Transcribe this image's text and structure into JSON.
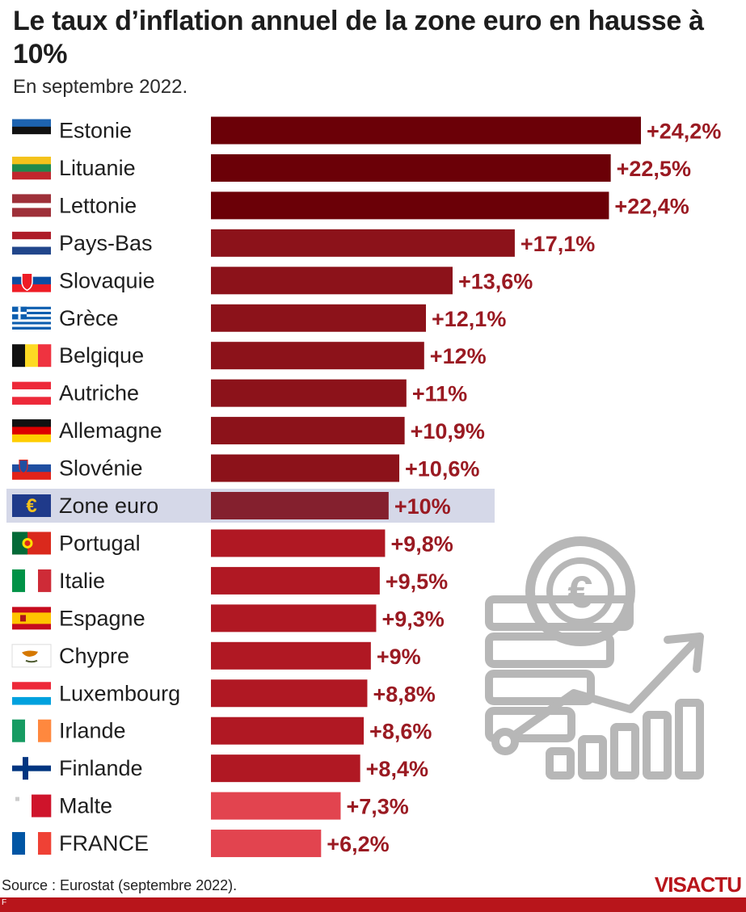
{
  "header": {
    "title": "Le taux d’inflation annuel de la zone euro en hausse à 10%",
    "subtitle": "En septembre 2022."
  },
  "footer": {
    "source": "Source : Eurostat (septembre 2022).",
    "brand": "VISACTU",
    "letter": "F"
  },
  "colors": {
    "dark": "#6b0007",
    "mid": "#8c121a",
    "light": "#b01823",
    "lightest": "#e2444f",
    "highlight_bg": "#d5d8e8",
    "highlight_bar": "#84202e",
    "label": "#9a1a22",
    "icon_gray": "#b7b7b7"
  },
  "chart_data": {
    "type": "bar",
    "orientation": "horizontal",
    "categories": [
      "Estonie",
      "Lituanie",
      "Lettonie",
      "Pays-Bas",
      "Slovaquie",
      "Grèce",
      "Belgique",
      "Autriche",
      "Allemagne",
      "Slovénie",
      "Zone euro",
      "Portugal",
      "Italie",
      "Espagne",
      "Chypre",
      "Luxembourg",
      "Irlande",
      "Finlande",
      "Malte",
      "FRANCE"
    ],
    "values": [
      24.2,
      22.5,
      22.4,
      17.1,
      13.6,
      12.1,
      12,
      11,
      10.9,
      10.6,
      10,
      9.8,
      9.5,
      9.3,
      9,
      8.8,
      8.6,
      8.4,
      7.3,
      6.2
    ],
    "value_labels": [
      "+24,2%",
      "+22,5%",
      "+22,4%",
      "+17,1%",
      "+13,6%",
      "+12,1%",
      "+12%",
      "+11%",
      "+10,9%",
      "+10,6%",
      "+10%",
      "+9,8%",
      "+9,5%",
      "+9,3%",
      "+9%",
      "+8,8%",
      "+8,6%",
      "+8,4%",
      "+7,3%",
      "+6,2%"
    ],
    "flags": [
      "estonia-flag-icon",
      "lithuania-flag-icon",
      "latvia-flag-icon",
      "netherlands-flag-icon",
      "slovakia-flag-icon",
      "greece-flag-icon",
      "belgium-flag-icon",
      "austria-flag-icon",
      "germany-flag-icon",
      "slovenia-flag-icon",
      "euro-icon",
      "portugal-flag-icon",
      "italy-flag-icon",
      "spain-flag-icon",
      "cyprus-flag-icon",
      "luxembourg-flag-icon",
      "ireland-flag-icon",
      "finland-flag-icon",
      "malta-flag-icon",
      "france-flag-icon"
    ],
    "highlight": "Zone euro",
    "unit": "%",
    "xlim": [
      0,
      24.2
    ],
    "grid": false,
    "legend": "none"
  }
}
